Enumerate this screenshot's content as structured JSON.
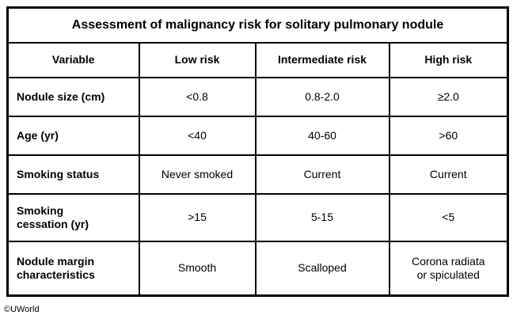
{
  "table": {
    "title": "Assessment of malignancy risk for solitary pulmonary nodule",
    "columns": [
      "Variable",
      "Low risk",
      "Intermediate risk",
      "High risk"
    ],
    "rows": [
      {
        "variable": "Nodule size (cm)",
        "low": "<0.8",
        "intermediate": "0.8-2.0",
        "high": "≥2.0"
      },
      {
        "variable": "Age (yr)",
        "low": "<40",
        "intermediate": "40-60",
        "high": ">60"
      },
      {
        "variable": "Smoking status",
        "low": "Never smoked",
        "intermediate": "Current",
        "high": "Current"
      },
      {
        "variable": "Smoking\ncessation (yr)",
        "low": ">15",
        "intermediate": "5-15",
        "high": "<5"
      },
      {
        "variable": "Nodule margin\ncharacteristics",
        "low": "Smooth",
        "intermediate": "Scalloped",
        "high": "Corona radiata\nor spiculated"
      }
    ]
  },
  "footer": {
    "credit": "©UWorld"
  },
  "colors": {
    "border": "#000000",
    "background": "#ffffff",
    "text": "#000000"
  }
}
